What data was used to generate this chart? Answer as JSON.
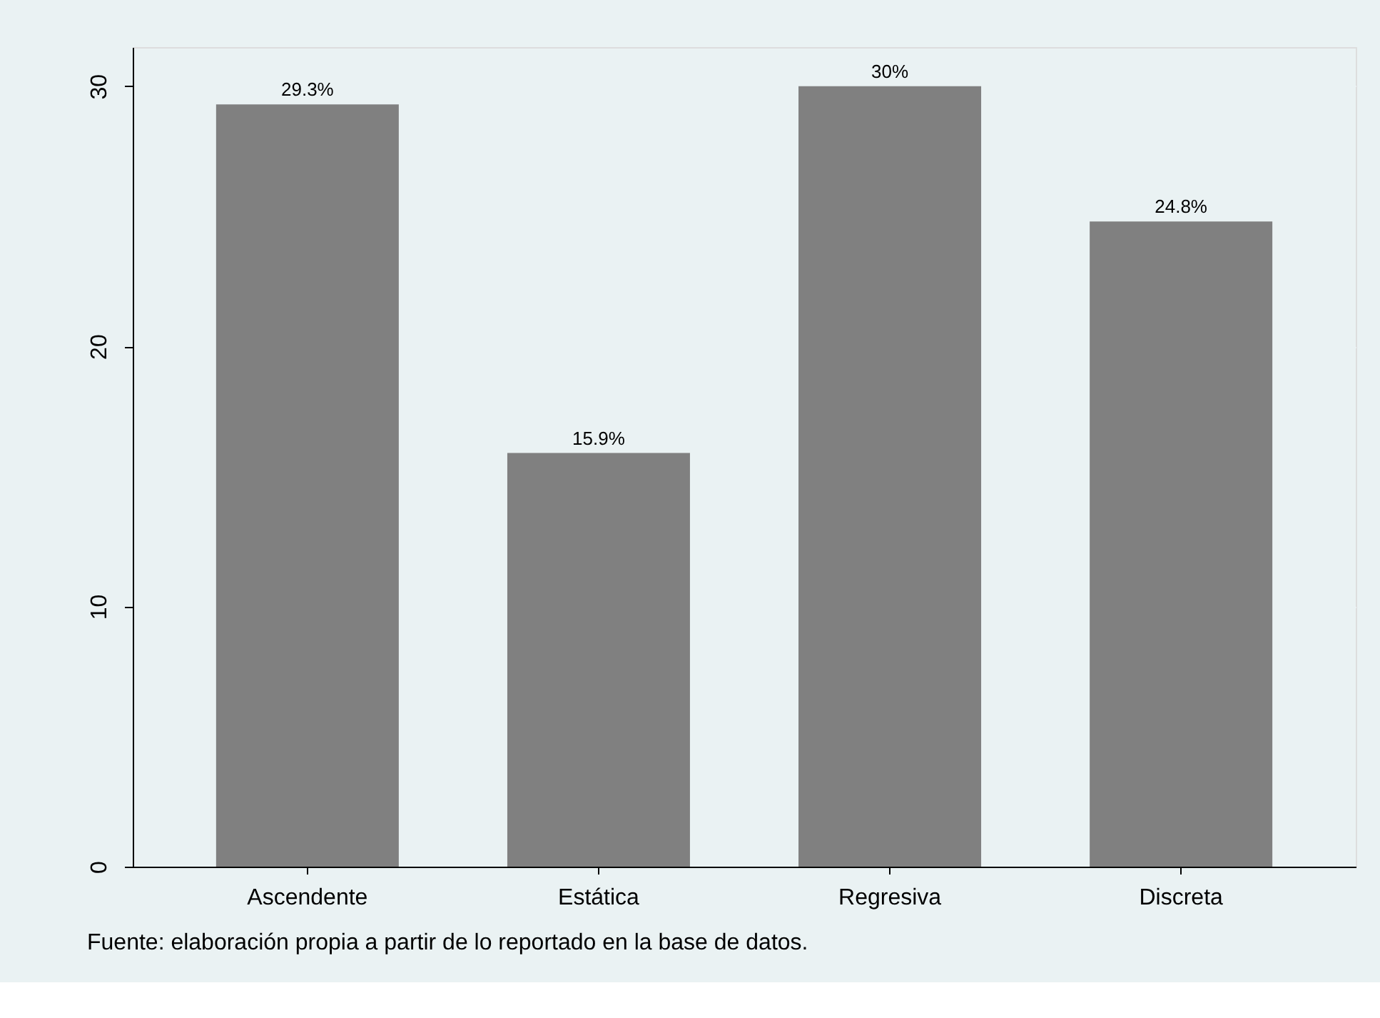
{
  "chart_data": {
    "type": "bar",
    "categories": [
      "Ascendente",
      "Estática",
      "Regresiva",
      "Discreta"
    ],
    "values": [
      29.3,
      15.9,
      30,
      24.8
    ],
    "value_labels": [
      "29.3%",
      "15.9%",
      "30%",
      "24.8%"
    ],
    "color": "#808080",
    "ylim": [
      0,
      31.5
    ],
    "yticks": [
      0,
      10,
      20,
      30
    ],
    "grid": "y",
    "annotations": [
      "Fuente: elaboración propia a partir de lo reportado en la base de datos."
    ]
  }
}
